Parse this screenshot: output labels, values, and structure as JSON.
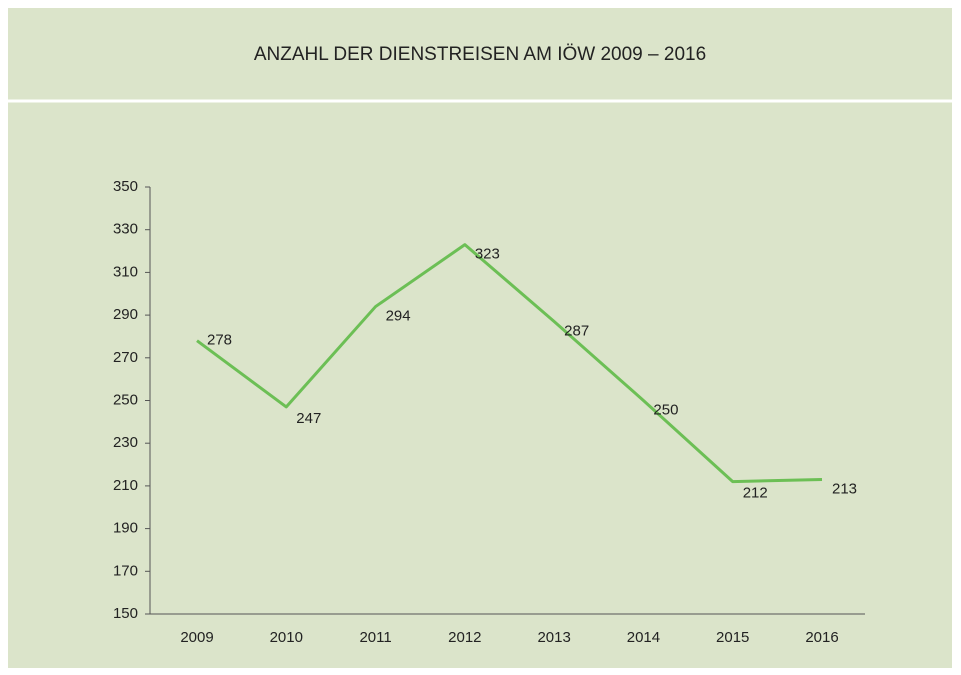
{
  "chart_data": {
    "type": "line",
    "title": "ANZAHL DER DIENSTREISEN AM IÖW 2009 – 2016",
    "categories": [
      "2009",
      "2010",
      "2011",
      "2012",
      "2013",
      "2014",
      "2015",
      "2016"
    ],
    "values": [
      278,
      247,
      294,
      323,
      287,
      250,
      212,
      213
    ],
    "color": "#6cbf55",
    "ylim": [
      150,
      350
    ],
    "yticks": [
      150,
      170,
      190,
      210,
      230,
      250,
      270,
      290,
      310,
      330,
      350
    ],
    "grid": false
  }
}
